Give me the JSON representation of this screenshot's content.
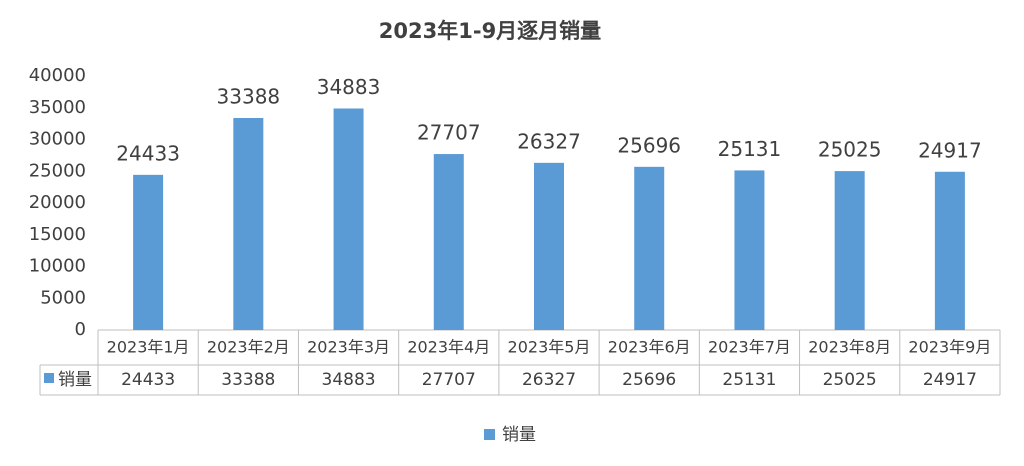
{
  "chart_data": {
    "type": "bar",
    "title": "2023年1-9月逐月销量",
    "categories": [
      "2023年1月",
      "2023年2月",
      "2023年3月",
      "2023年4月",
      "2023年5月",
      "2023年6月",
      "2023年7月",
      "2023年8月",
      "2023年9月"
    ],
    "series": [
      {
        "name": "销量",
        "color": "#5b9bd5",
        "values": [
          24433,
          33388,
          34883,
          27707,
          26327,
          25696,
          25131,
          25025,
          24917
        ]
      }
    ],
    "ylim": [
      0,
      40000
    ],
    "yticks": [
      0,
      5000,
      10000,
      15000,
      20000,
      25000,
      30000,
      35000,
      40000
    ],
    "grid": false,
    "data_table": true,
    "data_labels": true,
    "legend": "bottom"
  }
}
